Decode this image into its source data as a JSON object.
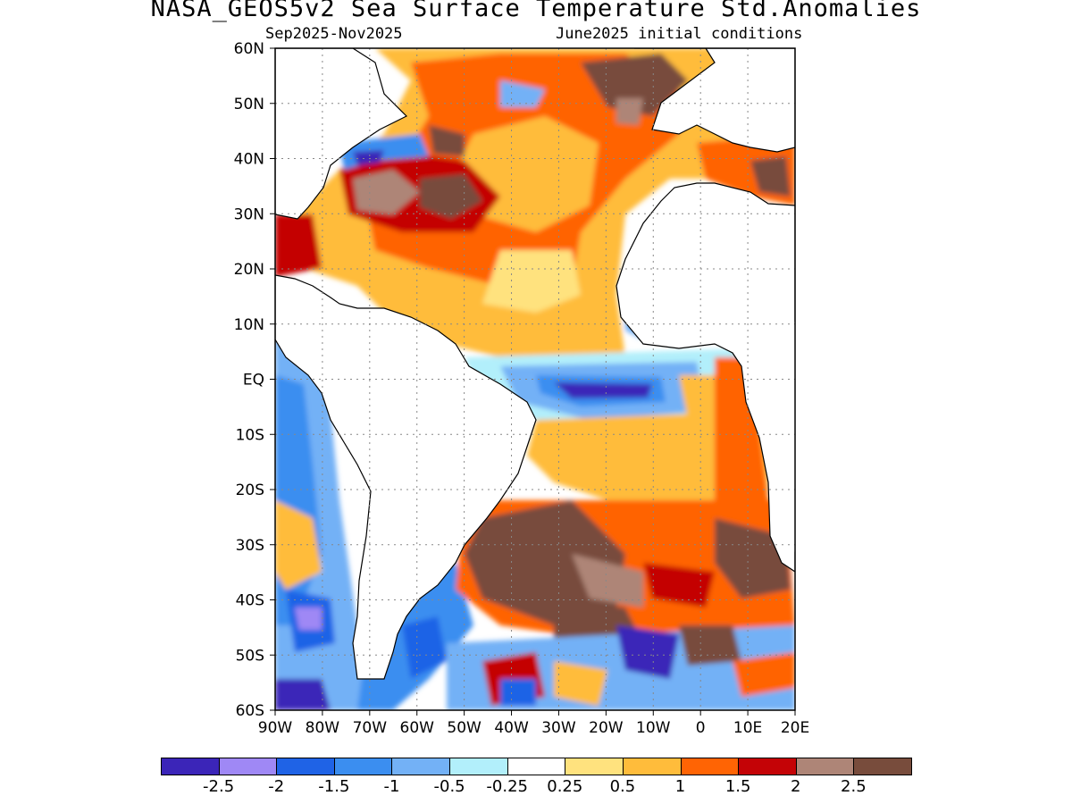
{
  "header": {
    "title": "NASA_GEOS5v2 Sea Surface Temperature Std.Anomalies",
    "subtitle_left": "Sep2025-Nov2025",
    "subtitle_right": "June2025 initial conditions"
  },
  "map": {
    "lat_labels": [
      "60N",
      "50N",
      "40N",
      "30N",
      "20N",
      "10N",
      "EQ",
      "10S",
      "20S",
      "30S",
      "40S",
      "50S",
      "60S"
    ],
    "lon_labels": [
      "90W",
      "80W",
      "70W",
      "60W",
      "50W",
      "40W",
      "30W",
      "20W",
      "10W",
      "0",
      "10E",
      "20E"
    ],
    "lon_range": [
      -90,
      20
    ],
    "lat_range": [
      -60,
      60
    ],
    "grid": "dotted"
  },
  "colorbar": {
    "colors": [
      "#3b25b8",
      "#9f88f5",
      "#1f63e6",
      "#3b8ef0",
      "#73b1f6",
      "#b2effb",
      "#ffffff",
      "#ffe27e",
      "#ffbc3b",
      "#ff6404",
      "#c40306",
      "#ae8577",
      "#784c3c"
    ],
    "labels": [
      "-2.5",
      "-2",
      "-1.5",
      "-1",
      "-0.5",
      "-0.25",
      "0.25",
      "0.5",
      "1",
      "1.5",
      "2",
      "2.5"
    ]
  }
}
